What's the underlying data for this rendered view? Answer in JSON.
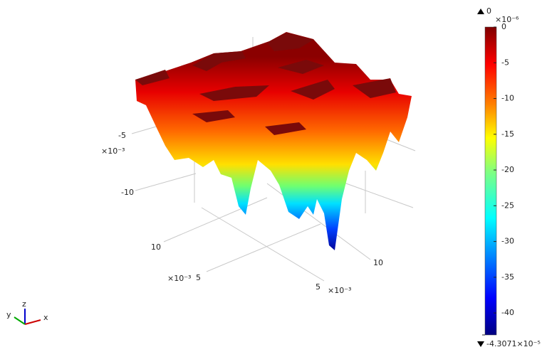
{
  "chart_data": {
    "type": "surface3d",
    "axes": [
      {
        "ticks": [
          -5,
          -10
        ],
        "exponent": "×10⁻³"
      },
      {
        "ticks": [
          10,
          5
        ],
        "exponent": "×10⁻³"
      },
      {
        "ticks": [
          5,
          10
        ],
        "exponent": "×10⁻³"
      }
    ],
    "triad": {
      "x": "x",
      "y": "y",
      "z": "z"
    },
    "colorbar": {
      "exponent": "×10⁻⁶",
      "clim": [
        -43.071,
        0
      ],
      "ticks": [
        0,
        -5,
        -10,
        -15,
        -20,
        -25,
        -30,
        -35,
        -40
      ],
      "max": 0,
      "min": {
        "value": -43.071,
        "label": "-4.3071×10⁻⁵"
      }
    }
  }
}
